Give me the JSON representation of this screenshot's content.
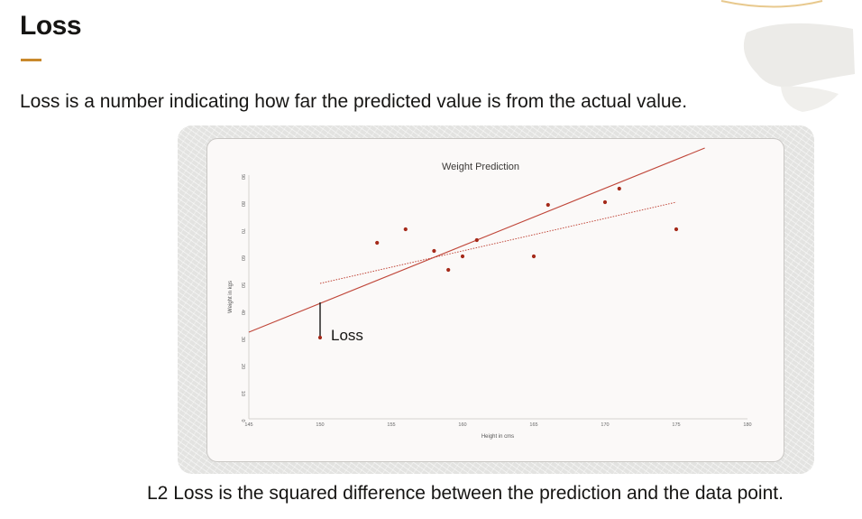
{
  "slide": {
    "title": "Loss",
    "subtitle": "Loss is a number indicating how far the predicted value is from the actual value.",
    "footer": "L2 Loss is the squared difference between the prediction and the data point."
  },
  "colors": {
    "accent": "#c9892c",
    "data_point": "#a52a1a",
    "line": "#c0473a",
    "text": "#161513"
  },
  "chart_data": {
    "type": "scatter",
    "title": "Weight Prediction",
    "xlabel": "Height in cms",
    "ylabel": "Weight in kgs",
    "xlim": [
      145,
      180
    ],
    "ylim": [
      0,
      90
    ],
    "x_ticks": [
      145,
      150,
      155,
      160,
      165,
      170,
      175,
      180
    ],
    "y_ticks": [
      0,
      10,
      20,
      30,
      40,
      50,
      60,
      70,
      80,
      90
    ],
    "grid": false,
    "series": [
      {
        "points": [
          {
            "x": 150,
            "y": 30
          },
          {
            "x": 154,
            "y": 65
          },
          {
            "x": 156,
            "y": 70
          },
          {
            "x": 158,
            "y": 62
          },
          {
            "x": 159,
            "y": 55
          },
          {
            "x": 160,
            "y": 60
          },
          {
            "x": 161,
            "y": 66
          },
          {
            "x": 165,
            "y": 60
          },
          {
            "x": 166,
            "y": 79
          },
          {
            "x": 170,
            "y": 80
          },
          {
            "x": 171,
            "y": 85
          },
          {
            "x": 175,
            "y": 70
          }
        ]
      }
    ],
    "lines": [
      {
        "style": "solid",
        "from": {
          "x": 145,
          "y": 32
        },
        "to": {
          "x": 177,
          "y": 100
        }
      },
      {
        "style": "dotted",
        "from": {
          "x": 150,
          "y": 50
        },
        "to": {
          "x": 175,
          "y": 80
        }
      }
    ],
    "annotation": {
      "label": "Loss",
      "x": 150,
      "y_from": 30,
      "y_to": 43
    }
  }
}
